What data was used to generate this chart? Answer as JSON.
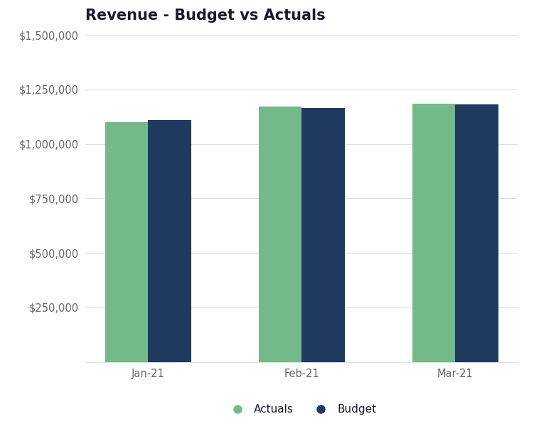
{
  "title": "Revenue - Budget vs Actuals",
  "categories": [
    "Jan-21",
    "Feb-21",
    "Mar-21"
  ],
  "actuals": [
    1100000,
    1170000,
    1185000
  ],
  "budget": [
    1110000,
    1165000,
    1180000
  ],
  "actuals_color": "#74b98a",
  "budget_color": "#1e3a5f",
  "ylim": [
    0,
    1500000
  ],
  "yticks": [
    250000,
    500000,
    750000,
    1000000,
    1250000,
    1500000
  ],
  "background_color": "#ffffff",
  "title_fontsize": 15,
  "tick_fontsize": 10.5,
  "legend_fontsize": 11,
  "bar_width": 0.28,
  "grid_color": "#e0e0e0",
  "axis_label_color": "#666666",
  "title_color": "#1a1a2e",
  "title_fontweight": "bold"
}
